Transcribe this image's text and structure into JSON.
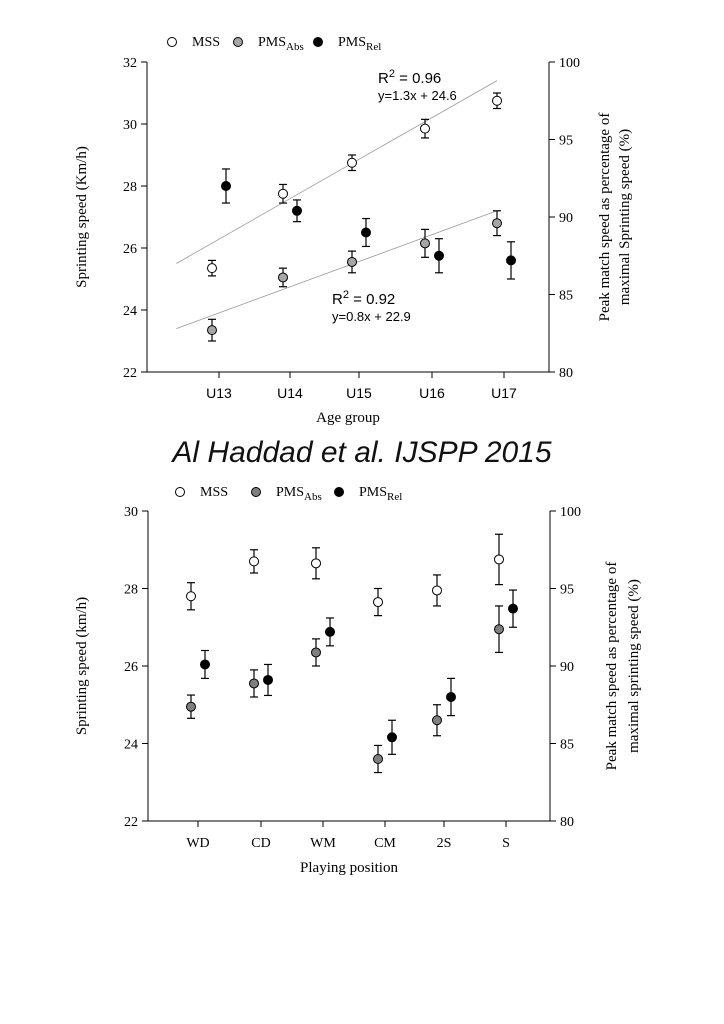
{
  "watermark": "Al Haddad et al. IJSPP 2015",
  "chart_data": [
    {
      "type": "scatter",
      "xlabel": "Age group",
      "ylabel": "Sprinting speed (Km/h)",
      "y2label_line1": "Peak match speed as percentage of",
      "y2label_line2": "maximal Sprinting speed (%)",
      "ylim": [
        22,
        32
      ],
      "y2lim": [
        80,
        100
      ],
      "yticks": [
        22,
        24,
        26,
        28,
        30,
        32
      ],
      "y2ticks": [
        80,
        85,
        90,
        95,
        100
      ],
      "categories": [
        "U13",
        "U14",
        "U15",
        "U16",
        "U17"
      ],
      "legend": [
        {
          "label": "MSS",
          "sub": "",
          "fill": "#ffffff"
        },
        {
          "label": "PMS",
          "sub": "Abs",
          "fill": "#a6a6a6"
        },
        {
          "label": "PMS",
          "sub": "Rel",
          "fill": "#000000"
        }
      ],
      "series": [
        {
          "name": "MSS",
          "axis": "left",
          "fill": "#ffffff",
          "values": [
            25.35,
            27.75,
            28.75,
            29.85,
            30.75
          ],
          "errors": [
            0.25,
            0.3,
            0.25,
            0.3,
            0.25
          ]
        },
        {
          "name": "PMS_Abs",
          "axis": "left",
          "fill": "#a6a6a6",
          "values": [
            23.35,
            25.05,
            25.55,
            26.15,
            26.8
          ],
          "errors": [
            0.35,
            0.3,
            0.35,
            0.45,
            0.4
          ]
        },
        {
          "name": "PMS_Rel",
          "axis": "right",
          "fill": "#000000",
          "values": [
            92.0,
            90.4,
            89.0,
            87.5,
            87.2
          ],
          "errors": [
            1.1,
            0.7,
            0.9,
            1.1,
            1.2
          ]
        }
      ],
      "trendlines": [
        {
          "series": "MSS",
          "x": [
            0.5,
            5.0
          ],
          "y": [
            25.5,
            31.4
          ]
        },
        {
          "series": "PMS_Abs",
          "x": [
            0.5,
            5.0
          ],
          "y": [
            23.4,
            27.2
          ]
        }
      ],
      "annotations": [
        {
          "r2": "0.96",
          "eq": "y=1.3x + 24.6"
        },
        {
          "r2": "0.92",
          "eq": "y=0.8x + 22.9"
        }
      ]
    },
    {
      "type": "scatter",
      "xlabel": "Playing position",
      "ylabel": "Sprinting speed (km/h)",
      "y2label_line1": "Peak match speed as percentage of",
      "y2label_line2": "maximal sprinting speed (%)",
      "ylim": [
        22,
        30
      ],
      "y2lim": [
        80,
        100
      ],
      "yticks": [
        22,
        24,
        26,
        28,
        30
      ],
      "y2ticks": [
        80,
        85,
        90,
        95,
        100
      ],
      "categories": [
        "WD",
        "CD",
        "WM",
        "CM",
        "2S",
        "S"
      ],
      "legend": [
        {
          "label": "MSS",
          "sub": "",
          "fill": "#ffffff"
        },
        {
          "label": "PMS",
          "sub": "Abs",
          "fill": "#7f7f7f"
        },
        {
          "label": "PMS",
          "sub": "Rel",
          "fill": "#000000"
        }
      ],
      "series": [
        {
          "name": "MSS",
          "axis": "left",
          "fill": "#ffffff",
          "values": [
            27.8,
            28.7,
            28.65,
            27.65,
            27.95,
            28.75
          ],
          "errors": [
            0.35,
            0.3,
            0.4,
            0.35,
            0.4,
            0.65
          ]
        },
        {
          "name": "PMS_Abs",
          "axis": "left",
          "fill": "#7f7f7f",
          "values": [
            24.95,
            25.55,
            26.35,
            23.6,
            24.6,
            26.95
          ],
          "errors": [
            0.3,
            0.35,
            0.35,
            0.35,
            0.4,
            0.6
          ]
        },
        {
          "name": "PMS_Rel",
          "axis": "right",
          "fill": "#000000",
          "values": [
            90.1,
            89.1,
            92.2,
            85.4,
            88.0,
            93.7
          ],
          "errors": [
            0.9,
            1.0,
            0.9,
            1.1,
            1.2,
            1.2
          ]
        }
      ]
    }
  ]
}
